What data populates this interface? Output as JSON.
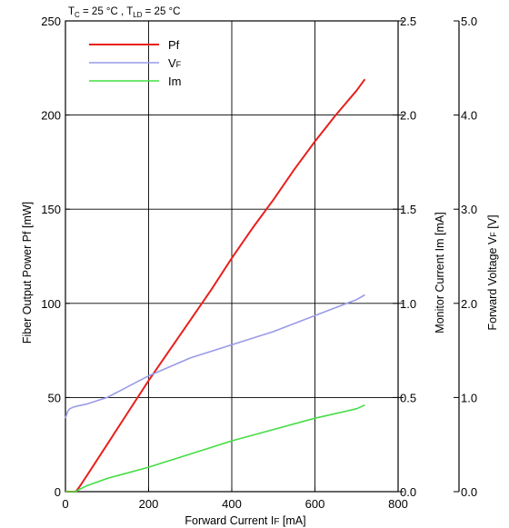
{
  "header": {
    "condition_tc": "T",
    "condition_tc_sub": "C",
    "condition_tc_value": " =  25  °C ,  ",
    "condition_tld": "T",
    "condition_tld_sub": "LD",
    "condition_tld_value": " = 25  °C"
  },
  "chart_data": {
    "type": "line",
    "title": "",
    "x_axis": {
      "label": "Forward  Current  I",
      "label_sub": "F",
      "label_unit": "  [mA]",
      "range": [
        0,
        800
      ],
      "ticks": [
        "0",
        "200",
        "400",
        "600",
        "800"
      ]
    },
    "y_left": {
      "label": "Fiber  Output  Power   Pf  [mW]",
      "range": [
        0,
        250
      ],
      "ticks": [
        "0",
        "50",
        "100",
        "150",
        "200",
        "250"
      ]
    },
    "y_right_inner": {
      "label": "Monitor  Current  Im  [mA]",
      "range": [
        0,
        2.5
      ],
      "ticks": [
        "0.0",
        "0.5",
        "1.0",
        "1.5",
        "2.0",
        "2.5"
      ]
    },
    "y_right_outer": {
      "label": "Forward  Voltage  V",
      "label_sub": "F",
      "label_unit": "  [V]",
      "range": [
        0,
        5
      ],
      "ticks": [
        "0.0",
        "1.0",
        "2.0",
        "3.0",
        "4.0",
        "5.0"
      ]
    },
    "grid": true,
    "legend": "top-left",
    "series": [
      {
        "name": "Pf",
        "axis": "y_left",
        "color": "#e8201c",
        "x": [
          0,
          25,
          32,
          50,
          100,
          150,
          200,
          250,
          300,
          350,
          400,
          450,
          500,
          550,
          600,
          650,
          700,
          720
        ],
        "y": [
          0,
          0,
          2,
          8,
          25,
          42,
          59,
          75,
          91,
          107,
          124,
          140,
          155,
          171,
          186,
          200,
          213,
          219
        ]
      },
      {
        "name": "V",
        "name_sub": "F",
        "axis": "y_right_outer",
        "color": "#9a9ae8",
        "x": [
          0,
          5,
          10,
          20,
          30,
          50,
          100,
          200,
          300,
          400,
          500,
          600,
          700,
          720
        ],
        "y": [
          0.78,
          0.85,
          0.88,
          0.9,
          0.91,
          0.93,
          1.0,
          1.23,
          1.42,
          1.56,
          1.7,
          1.87,
          2.04,
          2.09
        ]
      },
      {
        "name": "Im",
        "axis": "y_right_inner",
        "color": "#44dd44",
        "x": [
          0,
          25,
          32,
          50,
          100,
          200,
          300,
          400,
          500,
          600,
          700,
          720
        ],
        "y": [
          0,
          0,
          0.01,
          0.03,
          0.07,
          0.13,
          0.2,
          0.27,
          0.33,
          0.39,
          0.44,
          0.46
        ]
      }
    ]
  }
}
